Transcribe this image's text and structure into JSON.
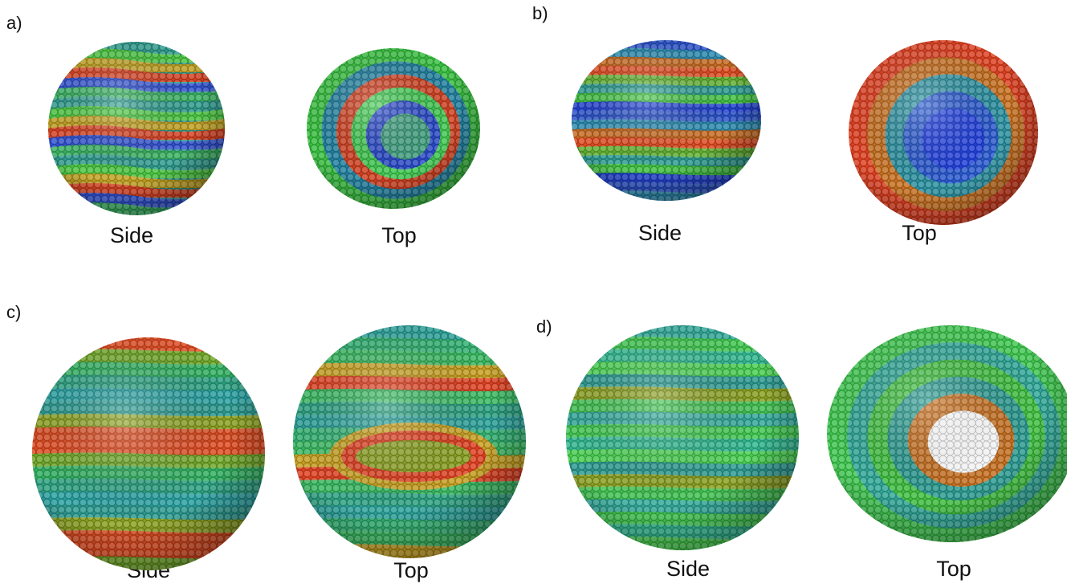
{
  "panels": [
    {
      "label": "a)",
      "views": [
        {
          "caption": "Side"
        },
        {
          "caption": "Top"
        }
      ]
    },
    {
      "label": "b)",
      "views": [
        {
          "caption": "Side"
        },
        {
          "caption": "Top"
        }
      ]
    },
    {
      "label": "c)",
      "views": [
        {
          "caption": "Side"
        },
        {
          "caption": "Top"
        }
      ]
    },
    {
      "label": "d)",
      "views": [
        {
          "caption": "Side"
        },
        {
          "caption": "Top"
        }
      ]
    }
  ]
}
